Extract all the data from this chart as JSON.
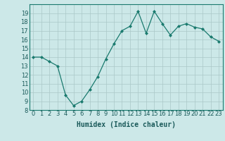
{
  "x": [
    0,
    1,
    2,
    3,
    4,
    5,
    6,
    7,
    8,
    9,
    10,
    11,
    12,
    13,
    14,
    15,
    16,
    17,
    18,
    19,
    20,
    21,
    22,
    23
  ],
  "y": [
    14.0,
    14.0,
    13.5,
    13.0,
    9.7,
    8.5,
    9.0,
    10.3,
    11.8,
    13.8,
    15.5,
    17.0,
    17.5,
    19.2,
    16.7,
    19.2,
    17.8,
    16.5,
    17.5,
    17.8,
    17.4,
    17.2,
    16.3,
    15.8
  ],
  "xlabel": "Humidex (Indice chaleur)",
  "ylim": [
    8,
    20
  ],
  "xlim": [
    -0.5,
    23.5
  ],
  "yticks": [
    8,
    9,
    10,
    11,
    12,
    13,
    14,
    15,
    16,
    17,
    18,
    19
  ],
  "xticks": [
    0,
    1,
    2,
    3,
    4,
    5,
    6,
    7,
    8,
    9,
    10,
    11,
    12,
    13,
    14,
    15,
    16,
    17,
    18,
    19,
    20,
    21,
    22,
    23
  ],
  "line_color": "#1a7a6e",
  "marker_color": "#1a7a6e",
  "bg_color": "#cce8e8",
  "grid_color": "#aac8c8",
  "axis_label_fontsize": 7,
  "tick_fontsize": 6,
  "label_color": "#1a5a5a"
}
